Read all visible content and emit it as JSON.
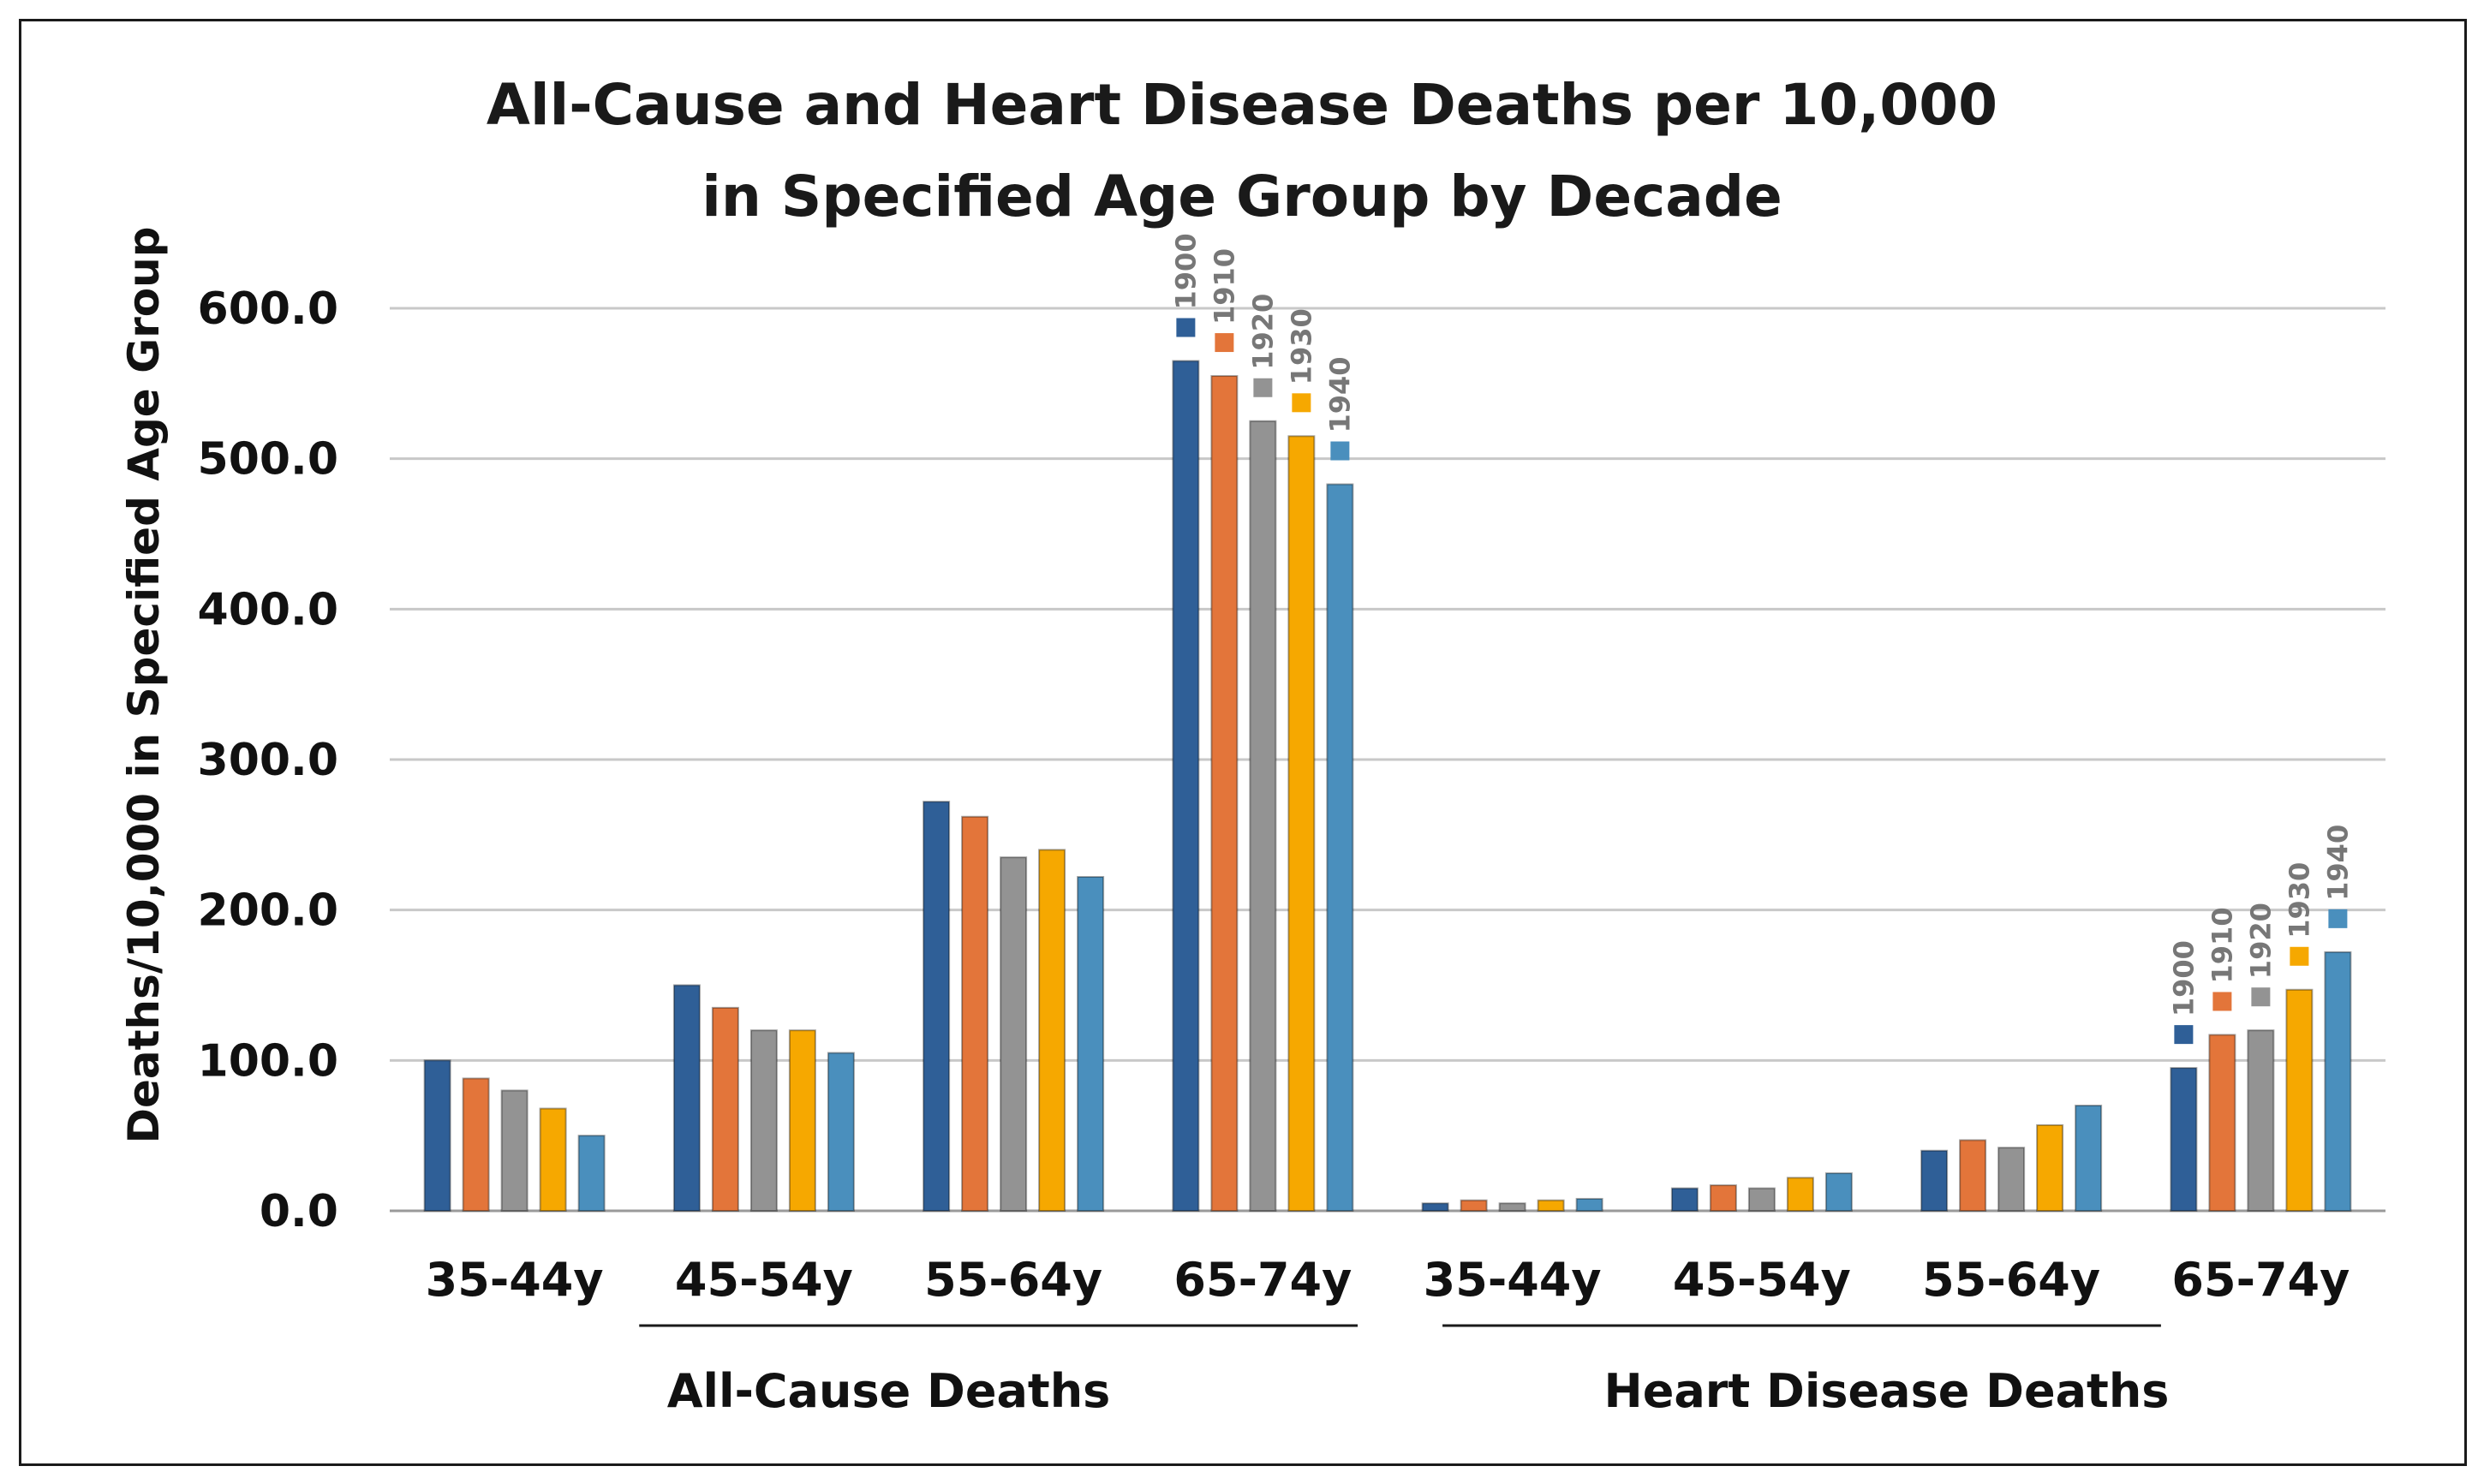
{
  "chart_data": {
    "type": "bar",
    "title": [
      "All-Cause and Heart Disease Deaths per 10,000",
      "in Specified Age Group by Decade"
    ],
    "ylabel": "Deaths/10,000 in Specified Age Group",
    "ylim": [
      0,
      600
    ],
    "yticks": [
      0,
      100,
      200,
      300,
      400,
      500,
      600
    ],
    "ytick_labels": [
      "0.0",
      "100.0",
      "200.0",
      "300.0",
      "400.0",
      "500.0",
      "600.0"
    ],
    "grid": true,
    "legend": "inline labels above tallest bar group in each section",
    "groups": [
      {
        "label": "All-Cause Deaths",
        "categories": [
          "35-44y",
          "45-54y",
          "55-64y",
          "65-74y"
        ]
      },
      {
        "label": "Heart Disease Deaths",
        "categories": [
          "35-44y",
          "45-54y",
          "55-64y",
          "65-74y"
        ]
      }
    ],
    "categories": [
      "35-44y",
      "45-54y",
      "55-64y",
      "65-74y",
      "35-44y",
      "45-54y",
      "55-64y",
      "65-74y"
    ],
    "series": [
      {
        "name": "1900",
        "color": "#2f5f97",
        "values": [
          100,
          150,
          272,
          565,
          5,
          15,
          40,
          95
        ]
      },
      {
        "name": "1910",
        "color": "#e3753a",
        "values": [
          88,
          135,
          262,
          555,
          7,
          17,
          47,
          117
        ]
      },
      {
        "name": "1920",
        "color": "#939393",
        "values": [
          80,
          120,
          235,
          525,
          5,
          15,
          42,
          120
        ]
      },
      {
        "name": "1930",
        "color": "#f6a800",
        "values": [
          68,
          120,
          240,
          515,
          7,
          22,
          57,
          147
        ]
      },
      {
        "name": "1940",
        "color": "#4a8fbd",
        "values": [
          50,
          105,
          222,
          483,
          8,
          25,
          70,
          172
        ]
      }
    ]
  }
}
